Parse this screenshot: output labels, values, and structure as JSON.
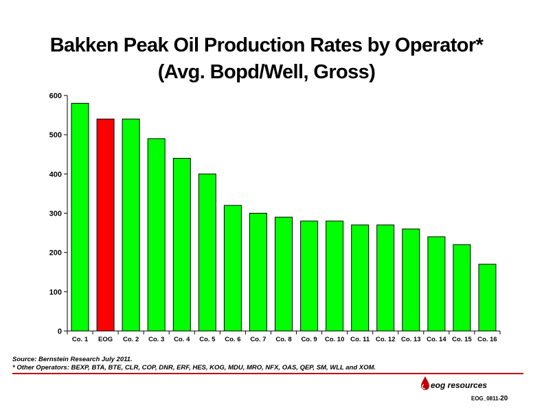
{
  "header": {
    "title_line1": "Bakken Peak Oil Production Rates by Operator*",
    "title_line2": "(Avg. Bopd/Well, Gross)"
  },
  "chart_data": {
    "type": "bar",
    "title": "Bakken Peak Oil Production Rates by Operator* (Avg. Bopd/Well, Gross)",
    "xlabel": "",
    "ylabel": "",
    "categories": [
      "Co. 1",
      "EOG",
      "Co. 2",
      "Co. 3",
      "Co. 4",
      "Co. 5",
      "Co. 6",
      "Co. 7",
      "Co. 8",
      "Co. 9",
      "Co. 10",
      "Co. 11",
      "Co. 12",
      "Co. 13",
      "Co. 14",
      "Co. 15",
      "Co. 16"
    ],
    "values": [
      580,
      540,
      540,
      490,
      440,
      400,
      320,
      300,
      290,
      280,
      280,
      270,
      270,
      260,
      240,
      220,
      170
    ],
    "ylim": [
      0,
      600
    ],
    "yticks": [
      0,
      100,
      200,
      300,
      400,
      500,
      600
    ],
    "grid": false,
    "legend": "none",
    "colors": {
      "default_bar": "#00ff00",
      "highlight_bar": "#ff0000",
      "highlight_category": "EOG",
      "bar_outline": "#000000"
    }
  },
  "footer": {
    "source": "Source: Bernstein Research July 2011.",
    "note": "* Other Operators: BEXP, BTA, BTE, CLR, COP, DNR, ERF, HES, KOG, MDU, MRO, NFX, OAS, QEP, SM, WLL and XOM.",
    "logo_text": "eog resources",
    "logo_icon": "oil-drop-icon",
    "slide_code": "EOG_0811-",
    "page_number": "20",
    "rule_color": "#c00000"
  }
}
